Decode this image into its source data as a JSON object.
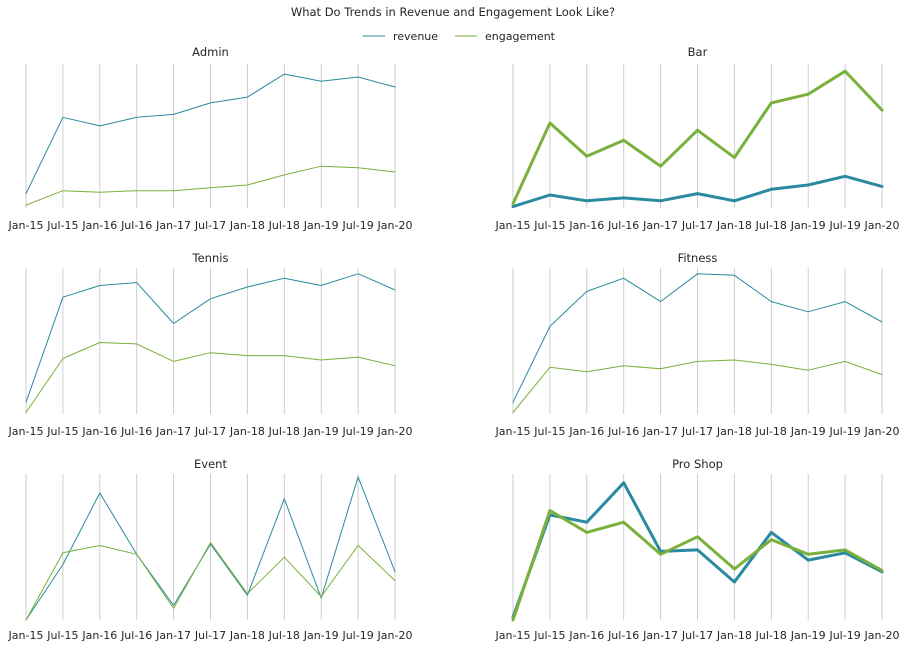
{
  "chart_data": {
    "type": "line",
    "title": "What Do Trends in Revenue and Engagement Look Like?",
    "legend": {
      "placement": "top-center",
      "entries": [
        {
          "name": "revenue",
          "color": "#2a8aa0"
        },
        {
          "name": "engagement",
          "color": "#7ab03c"
        }
      ]
    },
    "x": [
      "Jan-15",
      "Jul-15",
      "Jan-16",
      "Jul-16",
      "Jan-17",
      "Jul-17",
      "Jan-18",
      "Jul-18",
      "Jan-19",
      "Jul-19",
      "Jan-20"
    ],
    "grid": {
      "vertical": true,
      "horizontal": false
    },
    "y_axis_visible": false,
    "panels": [
      {
        "title": "Admin",
        "ylim": [
          0,
          100
        ],
        "emphasis": false,
        "series": [
          {
            "name": "revenue",
            "values": [
              10,
              63,
              57,
              63,
              65,
              73,
              77,
              93,
              88,
              91,
              84
            ]
          },
          {
            "name": "engagement",
            "values": [
              2,
              12,
              11,
              12,
              12,
              14,
              16,
              23,
              29,
              28,
              25
            ]
          }
        ]
      },
      {
        "title": "Bar",
        "ylim": [
          0,
          100
        ],
        "emphasis": true,
        "series": [
          {
            "name": "revenue",
            "values": [
              1,
              9,
              5,
              7,
              5,
              10,
              5,
              13,
              16,
              22,
              15
            ]
          },
          {
            "name": "engagement",
            "values": [
              3,
              59,
              36,
              47,
              29,
              54,
              35,
              73,
              79,
              95,
              68
            ]
          }
        ]
      },
      {
        "title": "Tennis",
        "ylim": [
          0,
          100
        ],
        "emphasis": false,
        "series": [
          {
            "name": "revenue",
            "values": [
              8,
              80,
              88,
              90,
              62,
              79,
              87,
              93,
              88,
              96,
              85
            ]
          },
          {
            "name": "engagement",
            "values": [
              1,
              38,
              49,
              48,
              36,
              42,
              40,
              40,
              37,
              39,
              33
            ]
          }
        ]
      },
      {
        "title": "Fitness",
        "ylim": [
          0,
          100
        ],
        "emphasis": false,
        "series": [
          {
            "name": "revenue",
            "values": [
              8,
              60,
              84,
              93,
              77,
              96,
              95,
              77,
              70,
              77,
              63
            ]
          },
          {
            "name": "engagement",
            "values": [
              1,
              32,
              29,
              33,
              31,
              36,
              37,
              34,
              30,
              36,
              27
            ]
          }
        ]
      },
      {
        "title": "Event",
        "ylim": [
          0,
          100
        ],
        "emphasis": false,
        "series": [
          {
            "name": "revenue",
            "values": [
              0,
              38,
              87,
              45,
              10,
              52,
              17,
              83,
              15,
              98,
              33
            ]
          },
          {
            "name": "engagement",
            "values": [
              0,
              46,
              51,
              45,
              8,
              53,
              18,
              43,
              16,
              51,
              27
            ]
          }
        ]
      },
      {
        "title": "Pro Shop",
        "ylim": [
          0,
          100
        ],
        "emphasis": true,
        "series": [
          {
            "name": "revenue",
            "values": [
              2,
              72,
              67,
              94,
              47,
              48,
              26,
              60,
              41,
              46,
              33
            ]
          },
          {
            "name": "engagement",
            "values": [
              0,
              75,
              60,
              67,
              45,
              57,
              35,
              55,
              45,
              48,
              34
            ]
          }
        ]
      }
    ]
  }
}
